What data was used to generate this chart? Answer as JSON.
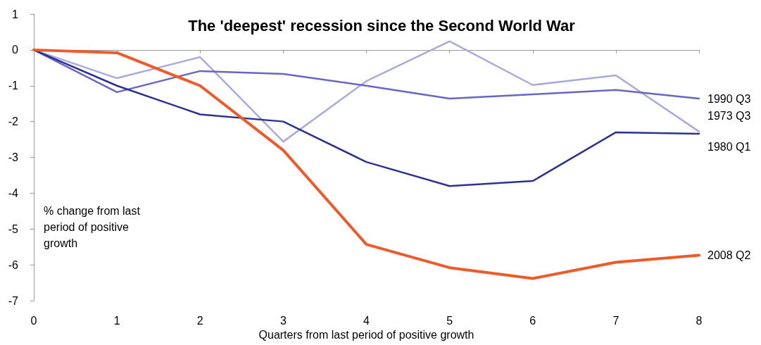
{
  "chart_data": {
    "type": "line",
    "title": "The 'deepest' recession since the Second World War",
    "xlabel": "Quarters from last period of positive growth",
    "annotations": [
      "% change from last period of positive growth"
    ],
    "x": [
      0,
      1,
      2,
      3,
      4,
      5,
      6,
      7,
      8
    ],
    "series": [
      {
        "name": "2008 Q2",
        "color": "#f05a28",
        "values": [
          0,
          -0.08,
          -1.0,
          -2.8,
          -5.43,
          -6.08,
          -6.38,
          -5.93,
          -5.73
        ]
      },
      {
        "name": "1980 Q1",
        "color": "#2e3192",
        "values": [
          0,
          -1.0,
          -1.8,
          -2.0,
          -3.13,
          -3.8,
          -3.66,
          -2.3,
          -2.34
        ]
      },
      {
        "name": "1990 Q3",
        "color": "#6666c8",
        "values": [
          0,
          -1.18,
          -0.59,
          -0.67,
          -1.0,
          -1.36,
          -1.24,
          -1.12,
          -1.36
        ]
      },
      {
        "name": "1973 Q3",
        "color": "#aaaadc",
        "values": [
          0,
          -0.79,
          -0.2,
          -2.56,
          -0.87,
          0.24,
          -0.98,
          -0.71,
          -2.28
        ]
      }
    ],
    "xlim": [
      0,
      8
    ],
    "xticks": [
      0,
      1,
      2,
      3,
      4,
      5,
      6,
      7,
      8
    ],
    "ylim": [
      -7,
      1
    ],
    "yticks": [
      -7,
      -6,
      -5,
      -4,
      -3,
      -2,
      -1,
      0,
      1
    ],
    "legend": false,
    "marker": "none",
    "line_style": "solid"
  }
}
